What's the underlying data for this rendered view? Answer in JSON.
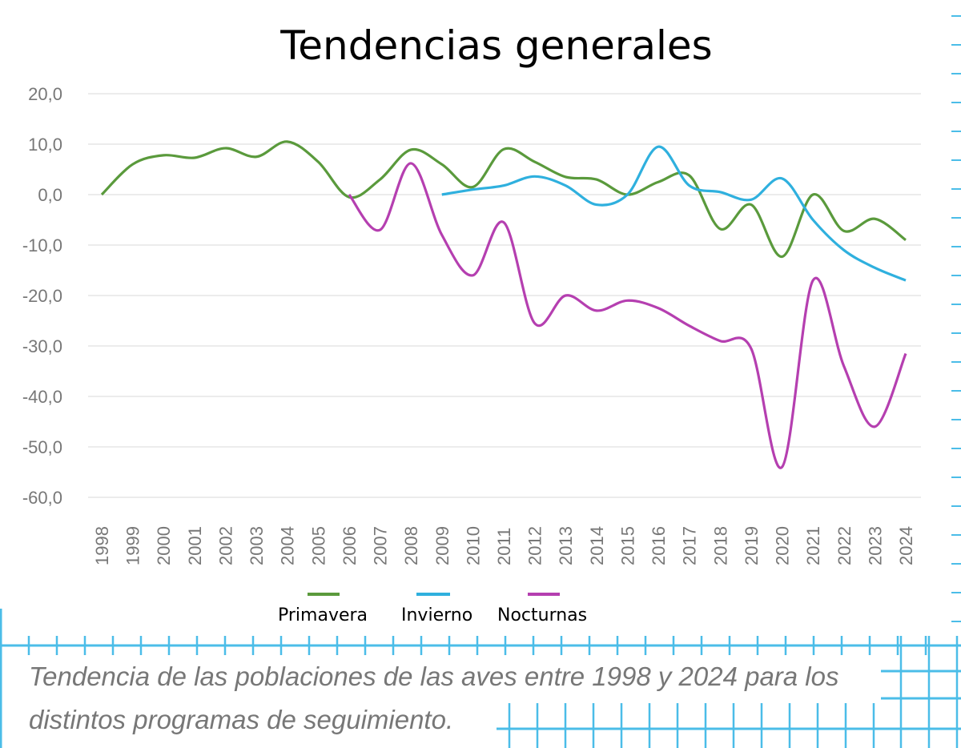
{
  "chart_data": {
    "type": "line",
    "title": "Tendencias generales",
    "xlabel": "",
    "ylabel": "",
    "ylim": [
      -60,
      20
    ],
    "yticks": [
      "20,0",
      "10,0",
      "0,0",
      "-10,0",
      "-20,0",
      "-30,0",
      "-40,0",
      "-50,0",
      "-60,0"
    ],
    "ytick_values": [
      20,
      10,
      0,
      -10,
      -20,
      -30,
      -40,
      -50,
      -60
    ],
    "grid": true,
    "legend_position": "bottom",
    "x": [
      "1998",
      "1999",
      "2000",
      "2001",
      "2002",
      "2003",
      "2004",
      "2005",
      "2006",
      "2007",
      "2008",
      "2009",
      "2010",
      "2011",
      "2012",
      "2013",
      "2014",
      "2015",
      "2016",
      "2017",
      "2018",
      "2019",
      "2020",
      "2021",
      "2022",
      "2023",
      "2024"
    ],
    "series": [
      {
        "name": "Primavera",
        "color": "#5a9a3c",
        "values": [
          0,
          6,
          7.8,
          7.3,
          9.2,
          7.5,
          10.5,
          6.5,
          -0.5,
          3,
          8.9,
          6,
          1.5,
          9,
          6.5,
          3.5,
          3,
          0,
          2.5,
          3.8,
          -6.8,
          -2,
          -12.3,
          0,
          -7.2,
          -4.8,
          -9
        ]
      },
      {
        "name": "Invierno",
        "color": "#2fb0de",
        "values": [
          null,
          null,
          null,
          null,
          null,
          null,
          null,
          null,
          null,
          null,
          null,
          0,
          1,
          1.8,
          3.6,
          1.8,
          -2,
          0,
          9.5,
          1.8,
          0.5,
          -1,
          3.2,
          -5,
          -11,
          -14.5,
          -17
        ]
      },
      {
        "name": "Nocturnas",
        "color": "#b53fb0",
        "values": [
          null,
          null,
          null,
          null,
          null,
          null,
          null,
          null,
          0,
          -7,
          6.2,
          -8,
          -16,
          -5.5,
          -25.5,
          -20,
          -23,
          -21,
          -22.5,
          -26,
          -29,
          -30.5,
          -54,
          -17,
          -34,
          -46,
          -31.5
        ]
      }
    ]
  },
  "caption": {
    "line1": "Tendencia de las poblaciones de las aves entre 1998 y 2024 para los",
    "line2": "distintos programas de seguimiento."
  },
  "colors": {
    "grid_decoration": "#4bbde8",
    "gridline": "#ececec",
    "tick_text": "#777777"
  }
}
